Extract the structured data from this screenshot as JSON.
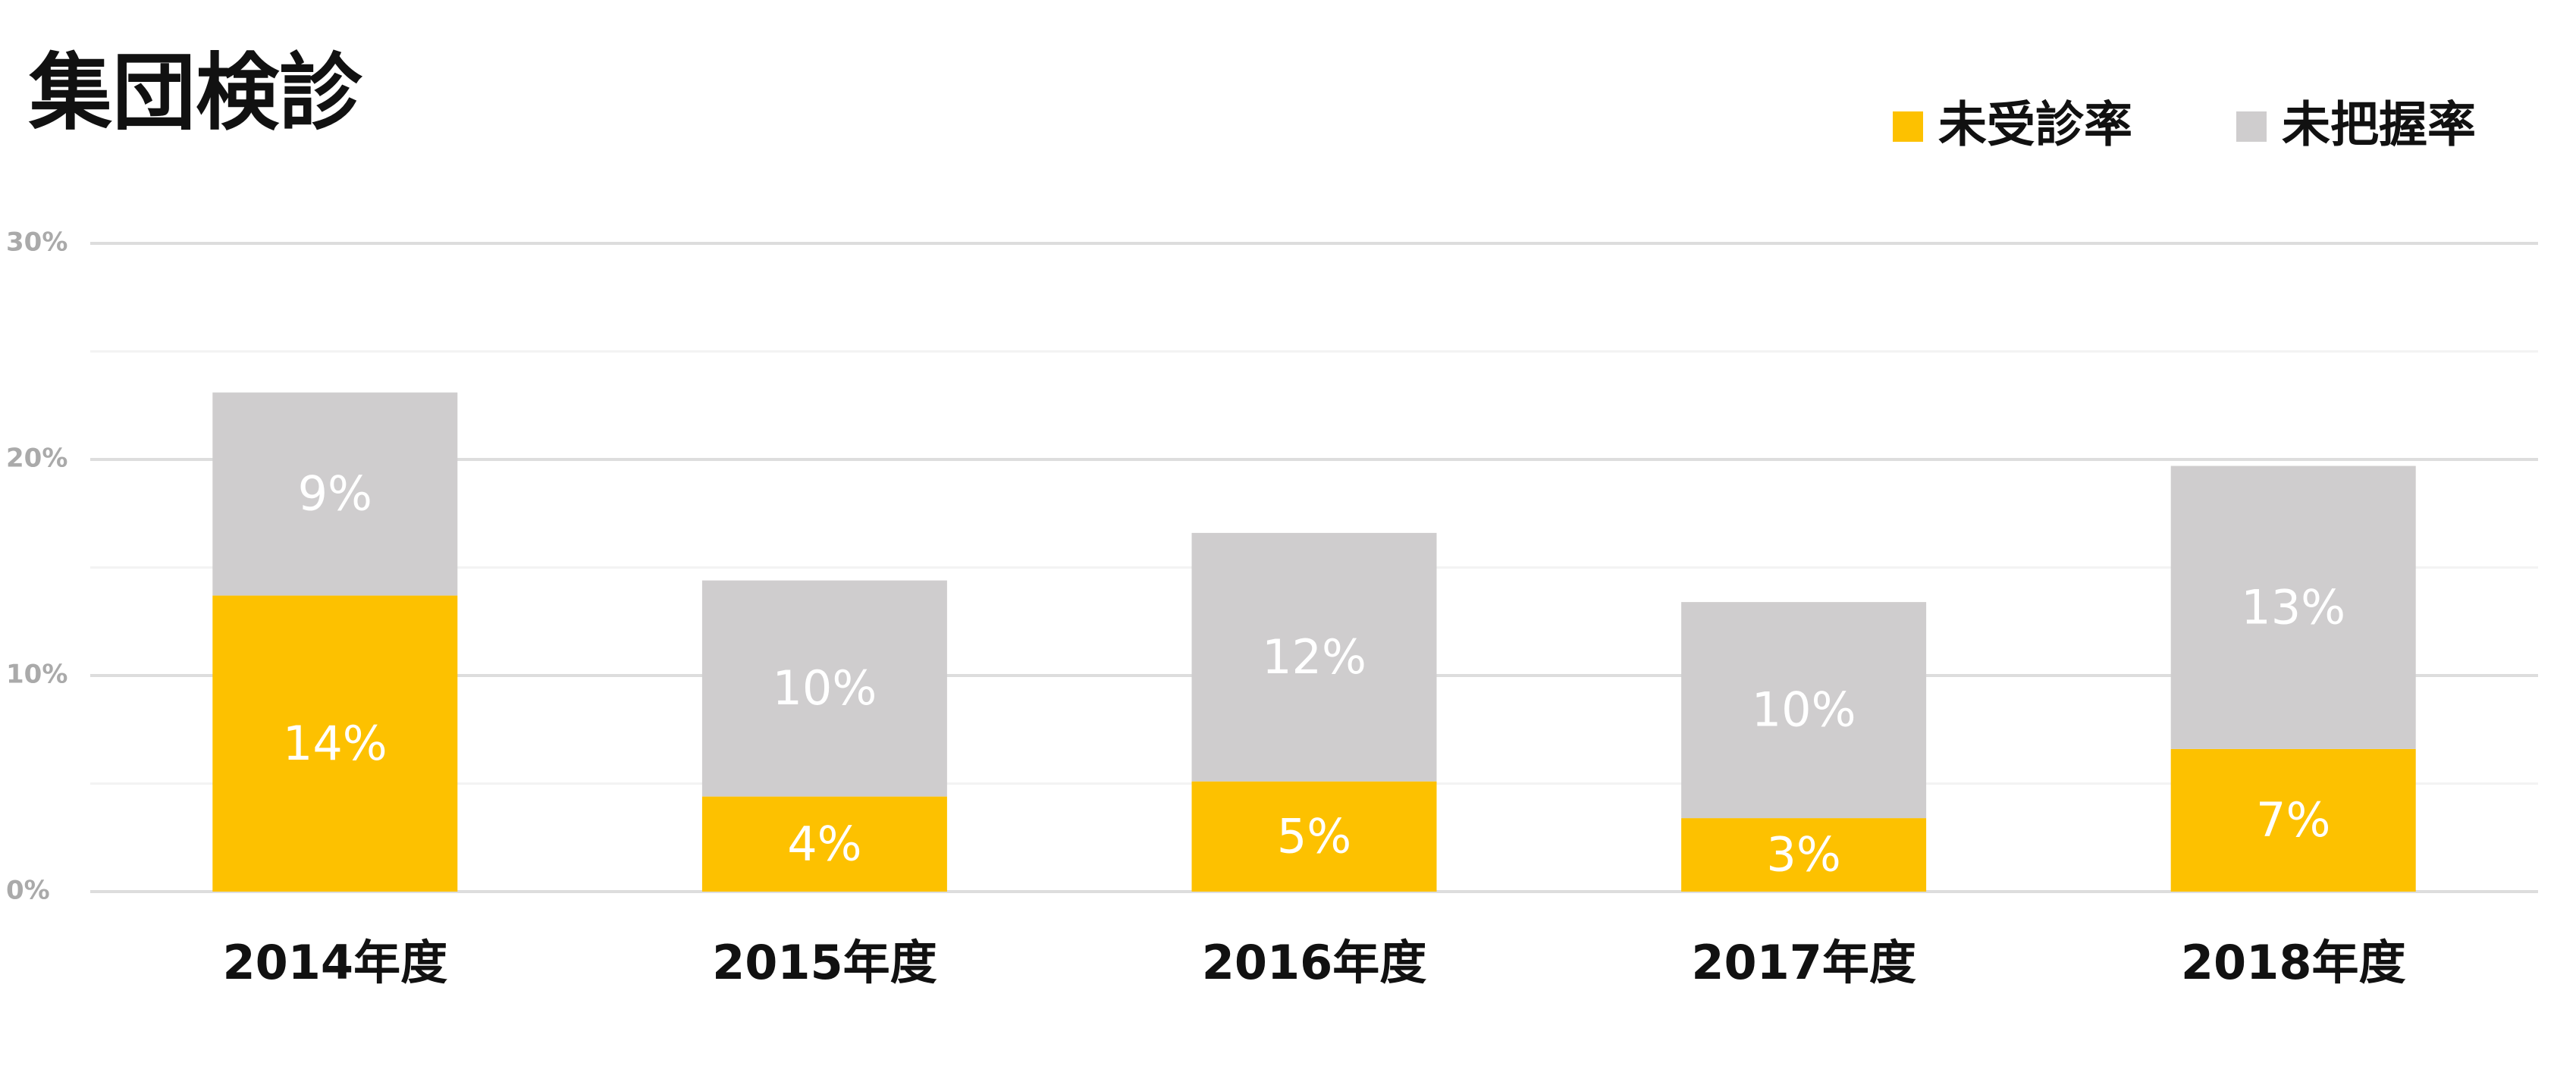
{
  "chart_data": {
    "type": "stacked_bar",
    "title": "集団検診",
    "categories": [
      "2014年度",
      "2015年度",
      "2016年度",
      "2017年度",
      "2018年度"
    ],
    "series": [
      {
        "name": "未受診率",
        "color": "#fdc100",
        "values": [
          13.7,
          4.4,
          5.1,
          3.4,
          6.6
        ],
        "value_labels": [
          "14%",
          "4%",
          "5%",
          "3%",
          "7%"
        ]
      },
      {
        "name": "未把握率",
        "color": "#cfcdce",
        "values": [
          9.4,
          10.0,
          11.5,
          10.0,
          13.1
        ],
        "value_labels": [
          "9%",
          "10%",
          "12%",
          "10%",
          "13%"
        ]
      }
    ],
    "ylim": [
      0,
      30
    ],
    "yticks": [
      {
        "value": 0,
        "label": "0%"
      },
      {
        "value": 10,
        "label": "10%"
      },
      {
        "value": 20,
        "label": "20%"
      },
      {
        "value": 30,
        "label": "30%"
      }
    ],
    "minor_yticks": [
      5,
      15,
      25
    ],
    "grid": true,
    "legend": "top-right"
  }
}
